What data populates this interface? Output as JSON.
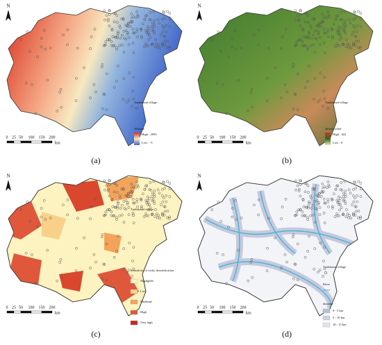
{
  "panels": [
    {
      "label": "(a)",
      "north": "N",
      "legend_point": "Traditional village",
      "legend_title": "Altitude",
      "legend_items": [
        "High : 2993",
        "Low : -3"
      ],
      "scale_ticks": [
        "0",
        "25",
        "50",
        "100",
        "150",
        "200"
      ],
      "scale_unit": "km"
    },
    {
      "label": "(b)",
      "north": "N",
      "legend_point": "Traditional village",
      "legend_title": "Terrain relief",
      "legend_items": [
        "High : 422",
        "Low : 0"
      ],
      "scale_ticks": [
        "0",
        "25",
        "50",
        "100",
        "150",
        "200"
      ],
      "scale_unit": "km"
    },
    {
      "label": "(c)",
      "north": "N",
      "legend_point": "Traditional village",
      "legend_title": "Sensitivity of rocky desertification",
      "legend_items": [
        "Negligible",
        "Low",
        "Moderate",
        "High",
        "Very high"
      ],
      "scale_ticks": [
        "0",
        "25",
        "50",
        "100",
        "150",
        "200"
      ],
      "scale_unit": "km"
    },
    {
      "label": "(d)",
      "north": "N",
      "legend_point": "Traditional village",
      "legend_river": "River",
      "legend_title": "distance",
      "legend_items": [
        "0 - 5 km",
        "5 - 10 km",
        "10 - 15 km"
      ],
      "scale_ticks": [
        "0",
        "25",
        "50",
        "100",
        "150",
        "200"
      ],
      "scale_unit": "km"
    }
  ]
}
